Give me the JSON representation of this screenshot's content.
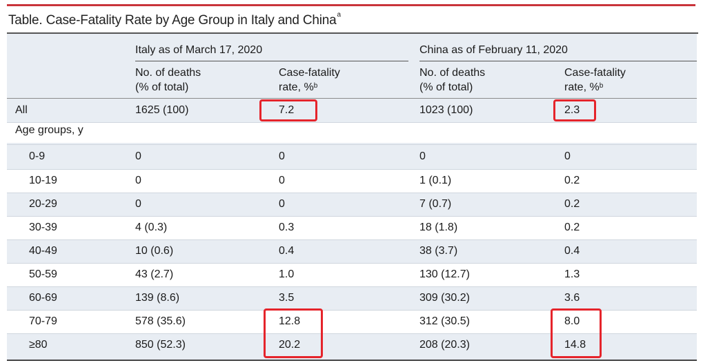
{
  "colors": {
    "top_rule": "#c9343a",
    "table_shade": "#e8edf3",
    "highlight_border": "#e5242b"
  },
  "title": {
    "text": "Table. Case-Fatality Rate by Age Group in Italy and China",
    "footnote_mark": "a"
  },
  "groups": {
    "italy": "Italy as of March 17, 2020",
    "china": "China as of February 11, 2020"
  },
  "columns": {
    "deaths_line1": "No. of deaths",
    "deaths_line2": "(% of total)",
    "cfr_line1": "Case-fatality",
    "cfr_line2": "rate, %",
    "cfr_footnote_mark": "b"
  },
  "rows": [
    {
      "label": "All",
      "italy_deaths": "1625 (100)",
      "italy_cfr": "7.2",
      "china_deaths": "1023 (100)",
      "china_cfr": "2.3",
      "highlight_italy": true,
      "highlight_china": true
    },
    {
      "label": "Age groups, y",
      "italy_deaths": "",
      "italy_cfr": "",
      "china_deaths": "",
      "china_cfr": "",
      "highlight_italy": false,
      "highlight_china": false
    },
    {
      "label": "0-9",
      "italy_deaths": "0",
      "italy_cfr": "0",
      "china_deaths": "0",
      "china_cfr": "0",
      "highlight_italy": false,
      "highlight_china": false
    },
    {
      "label": "10-19",
      "italy_deaths": "0",
      "italy_cfr": "0",
      "china_deaths": "1 (0.1)",
      "china_cfr": "0.2",
      "highlight_italy": false,
      "highlight_china": false
    },
    {
      "label": "20-29",
      "italy_deaths": "0",
      "italy_cfr": "0",
      "china_deaths": "7 (0.7)",
      "china_cfr": "0.2",
      "highlight_italy": false,
      "highlight_china": false
    },
    {
      "label": "30-39",
      "italy_deaths": "4 (0.3)",
      "italy_cfr": "0.3",
      "china_deaths": "18 (1.8)",
      "china_cfr": "0.2",
      "highlight_italy": false,
      "highlight_china": false
    },
    {
      "label": "40-49",
      "italy_deaths": "10 (0.6)",
      "italy_cfr": "0.4",
      "china_deaths": "38 (3.7)",
      "china_cfr": "0.4",
      "highlight_italy": false,
      "highlight_china": false
    },
    {
      "label": "50-59",
      "italy_deaths": "43 (2.7)",
      "italy_cfr": "1.0",
      "china_deaths": "130 (12.7)",
      "china_cfr": "1.3",
      "highlight_italy": false,
      "highlight_china": false
    },
    {
      "label": "60-69",
      "italy_deaths": "139 (8.6)",
      "italy_cfr": "3.5",
      "china_deaths": "309 (30.2)",
      "china_cfr": "3.6",
      "highlight_italy": false,
      "highlight_china": false
    },
    {
      "label": "70-79",
      "italy_deaths": "578 (35.6)",
      "italy_cfr": "12.8",
      "china_deaths": "312 (30.5)",
      "china_cfr": "8.0",
      "highlight_italy": true,
      "highlight_china": true
    },
    {
      "label": "≥80",
      "italy_deaths": "850 (52.3)",
      "italy_cfr": "20.2",
      "china_deaths": "208 (20.3)",
      "china_cfr": "14.8",
      "highlight_italy": true,
      "highlight_china": true
    }
  ]
}
